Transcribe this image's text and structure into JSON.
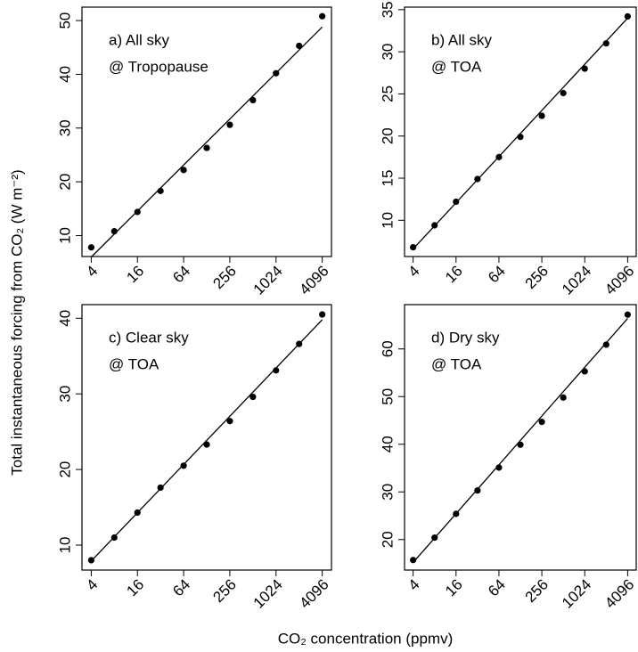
{
  "y_label": "Total instantaneous forcing from CO₂  (W m⁻²)",
  "x_label": "CO₂ concentration  (ppmv)",
  "chart_data": [
    {
      "type": "scatter",
      "label_lines": [
        "a) All sky",
        "@ Tropopause"
      ],
      "xscale": "log",
      "color": "#000000",
      "x": [
        4,
        8,
        16,
        32,
        64,
        128,
        256,
        512,
        1024,
        2048,
        4096
      ],
      "values": [
        7.8,
        10.8,
        14.4,
        18.3,
        22.2,
        26.3,
        30.6,
        35.2,
        40.2,
        45.3,
        50.8
      ],
      "fit": {
        "x": [
          4,
          4096
        ],
        "y": [
          6.0,
          48.8
        ]
      },
      "xlim": [
        3.03,
        5404
      ],
      "xticks": [
        4,
        16,
        64,
        256,
        1024,
        4096
      ],
      "ylim": [
        6.1,
        52.5
      ],
      "yticks": [
        10,
        20,
        30,
        40,
        50
      ]
    },
    {
      "type": "scatter",
      "label_lines": [
        "b) All sky",
        "@ TOA"
      ],
      "xscale": "log",
      "color": "#000000",
      "x": [
        4,
        8,
        16,
        32,
        64,
        128,
        256,
        512,
        1024,
        2048,
        4096
      ],
      "values": [
        6.8,
        9.4,
        12.2,
        14.9,
        17.5,
        19.9,
        22.4,
        25.1,
        28.0,
        31.0,
        34.2
      ],
      "fit": {
        "x": [
          4,
          4096
        ],
        "y": [
          6.6,
          34.0
        ]
      },
      "xlim": [
        3.03,
        5404
      ],
      "xticks": [
        4,
        16,
        64,
        256,
        1024,
        4096
      ],
      "ylim": [
        5.7,
        35.3
      ],
      "yticks": [
        10,
        15,
        20,
        25,
        30,
        35
      ]
    },
    {
      "type": "scatter",
      "label_lines": [
        "c) Clear sky",
        "@ TOA"
      ],
      "xscale": "log",
      "color": "#000000",
      "x": [
        4,
        8,
        16,
        32,
        64,
        128,
        256,
        512,
        1024,
        2048,
        4096
      ],
      "values": [
        8.0,
        11.0,
        14.3,
        17.6,
        20.5,
        23.3,
        26.4,
        29.6,
        33.1,
        36.6,
        40.5
      ],
      "fit": {
        "x": [
          4,
          4096
        ],
        "y": [
          7.9,
          39.8
        ]
      },
      "xlim": [
        3.03,
        5404
      ],
      "xticks": [
        4,
        16,
        64,
        256,
        1024,
        4096
      ],
      "ylim": [
        6.7,
        41.8
      ],
      "yticks": [
        10,
        20,
        30,
        40
      ]
    },
    {
      "type": "scatter",
      "label_lines": [
        "d) Dry sky",
        "@ TOA"
      ],
      "xscale": "log",
      "color": "#000000",
      "x": [
        4,
        8,
        16,
        32,
        64,
        128,
        256,
        512,
        1024,
        2048,
        4096
      ],
      "values": [
        15.7,
        20.4,
        25.4,
        30.3,
        35.1,
        39.9,
        44.7,
        49.8,
        55.3,
        60.9,
        67.2
      ],
      "fit": {
        "x": [
          4,
          4096
        ],
        "y": [
          15.2,
          66.4
        ]
      },
      "xlim": [
        3.03,
        5404
      ],
      "xticks": [
        4,
        16,
        64,
        256,
        1024,
        4096
      ],
      "ylim": [
        13.6,
        69.3
      ],
      "yticks": [
        20,
        30,
        40,
        50,
        60
      ]
    }
  ]
}
